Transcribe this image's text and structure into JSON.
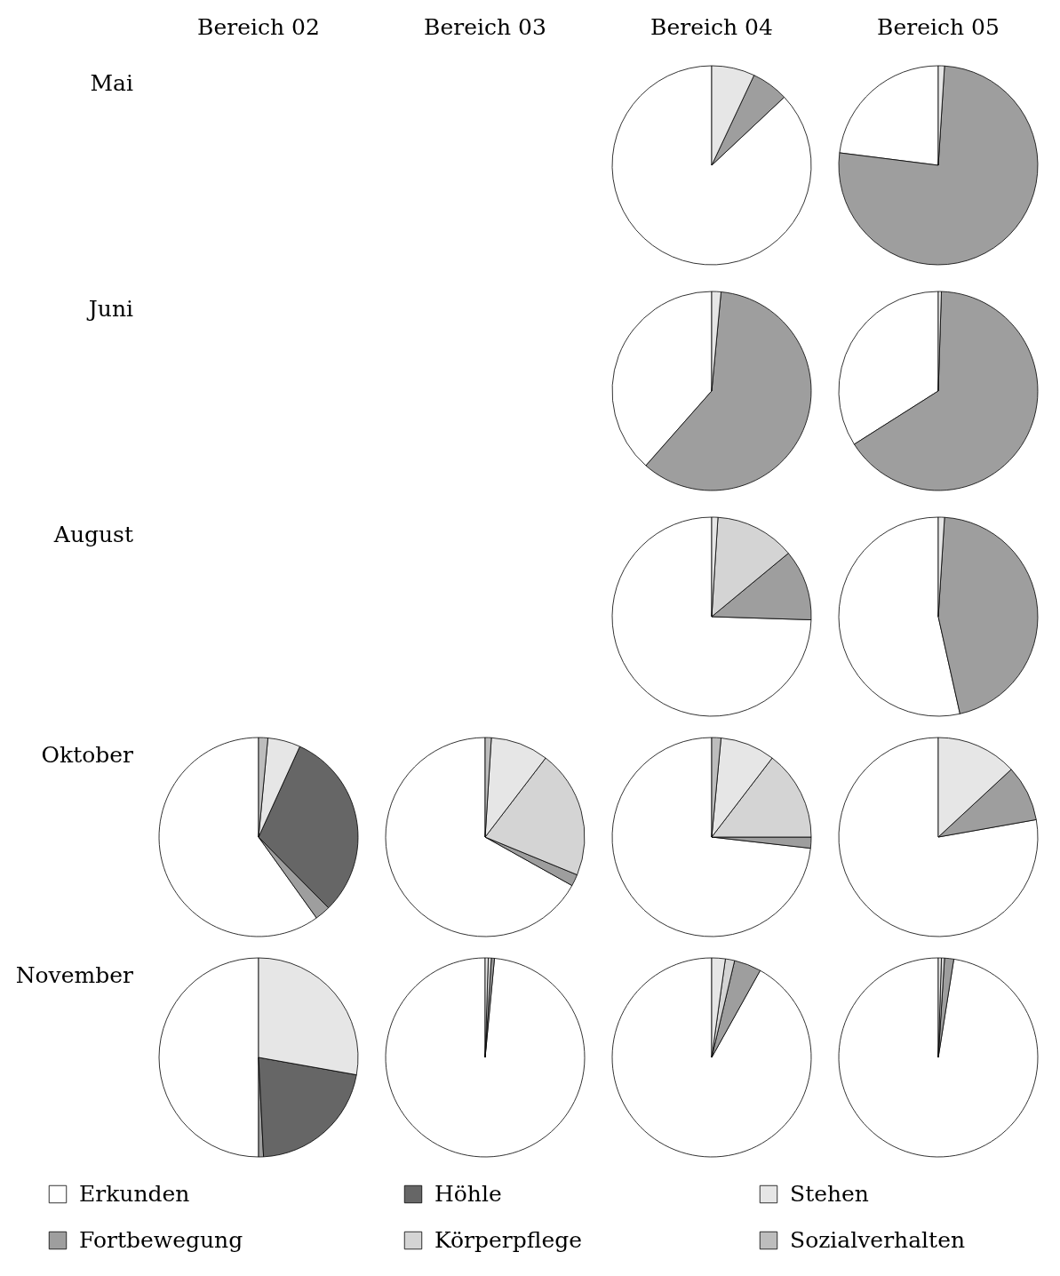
{
  "chart_data": [
    {
      "type": "pie",
      "categories": [
        "Erkunden",
        "Fortbewegung",
        "Höhle",
        "Körperpflege",
        "Stehen",
        "Sozialverhalten"
      ],
      "values": [
        87,
        6,
        null,
        null,
        7,
        null
      ],
      "colors": [
        "#ffffff",
        "#9e9e9e",
        "#666666",
        "#d4d4d4",
        "#e6e6e6",
        "#bdbdbd"
      ],
      "legend": "bottom"
    },
    {
      "type": "pie",
      "values": [
        23,
        76,
        null,
        null,
        1,
        null
      ],
      "colors": [
        "#ffffff",
        "#9e9e9e",
        "#666666",
        "#d4d4d4",
        "#e6e6e6",
        "#bdbdbd"
      ]
    },
    {
      "type": "pie",
      "values": [
        38.5,
        60,
        null,
        null,
        1.5,
        null
      ],
      "colors": [
        "#ffffff",
        "#9e9e9e",
        "#666666",
        "#d4d4d4",
        "#e6e6e6",
        "#bdbdbd"
      ]
    },
    {
      "type": "pie",
      "values": [
        34,
        65.5,
        null,
        null,
        0.5,
        null
      ],
      "colors": [
        "#ffffff",
        "#9e9e9e",
        "#666666",
        "#d4d4d4",
        "#e6e6e6",
        "#bdbdbd"
      ]
    },
    {
      "type": "pie",
      "values": [
        74.5,
        11.5,
        null,
        13,
        1,
        null
      ],
      "colors": [
        "#ffffff",
        "#9e9e9e",
        "#666666",
        "#d4d4d4",
        "#e6e6e6",
        "#bdbdbd"
      ]
    },
    {
      "type": "pie",
      "values": [
        53.5,
        45.5,
        null,
        null,
        1,
        null
      ],
      "colors": [
        "#ffffff",
        "#9e9e9e",
        "#666666",
        "#d4d4d4",
        "#e6e6e6",
        "#bdbdbd"
      ]
    },
    {
      "type": "pie",
      "values": [
        59.9,
        2.5,
        30.8,
        null,
        5.3,
        1.5
      ],
      "colors": [
        "#ffffff",
        "#9e9e9e",
        "#666666",
        "#d4d4d4",
        "#e6e6e6",
        "#bdbdbd"
      ]
    },
    {
      "type": "pie",
      "values": [
        66.9,
        1.9,
        null,
        20.8,
        9.4,
        1
      ],
      "colors": [
        "#ffffff",
        "#9e9e9e",
        "#666666",
        "#d4d4d4",
        "#e6e6e6",
        "#bdbdbd"
      ]
    },
    {
      "type": "pie",
      "values": [
        73.2,
        1.8,
        null,
        14.6,
        8.9,
        1.5
      ],
      "colors": [
        "#ffffff",
        "#9e9e9e",
        "#666666",
        "#d4d4d4",
        "#e6e6e6",
        "#bdbdbd"
      ]
    },
    {
      "type": "pie",
      "values": [
        77.8,
        9.1,
        null,
        null,
        13.1,
        null
      ],
      "colors": [
        "#ffffff",
        "#9e9e9e",
        "#666666",
        "#d4d4d4",
        "#e6e6e6",
        "#bdbdbd"
      ]
    },
    {
      "type": "pie",
      "values": [
        50,
        0.8,
        21.4,
        null,
        27.8,
        null
      ],
      "colors": [
        "#ffffff",
        "#9e9e9e",
        "#666666",
        "#d4d4d4",
        "#e6e6e6",
        "#bdbdbd"
      ]
    },
    {
      "type": "pie",
      "values": [
        98.5,
        0.5,
        null,
        0.5,
        0.5,
        null
      ],
      "colors": [
        "#ffffff",
        "#9e9e9e",
        "#666666",
        "#d4d4d4",
        "#e6e6e6",
        "#bdbdbd"
      ]
    },
    {
      "type": "pie",
      "values": [
        91.9,
        4.4,
        null,
        1.5,
        2.2,
        null
      ],
      "colors": [
        "#ffffff",
        "#9e9e9e",
        "#666666",
        "#d4d4d4",
        "#e6e6e6",
        "#bdbdbd"
      ]
    },
    {
      "type": "pie",
      "values": [
        97.5,
        1.5,
        null,
        0.5,
        0.5,
        null
      ],
      "colors": [
        "#ffffff",
        "#9e9e9e",
        "#666666",
        "#d4d4d4",
        "#e6e6e6",
        "#bdbdbd"
      ]
    },
    {
      "type": "other",
      "categories": [
        "Bereich 02",
        "Bereich 03",
        "Bereich 04",
        "Bereich 05"
      ],
      "y_categories": [
        "Mai",
        "Juni",
        "August",
        "Oktober",
        "November"
      ]
    }
  ]
}
